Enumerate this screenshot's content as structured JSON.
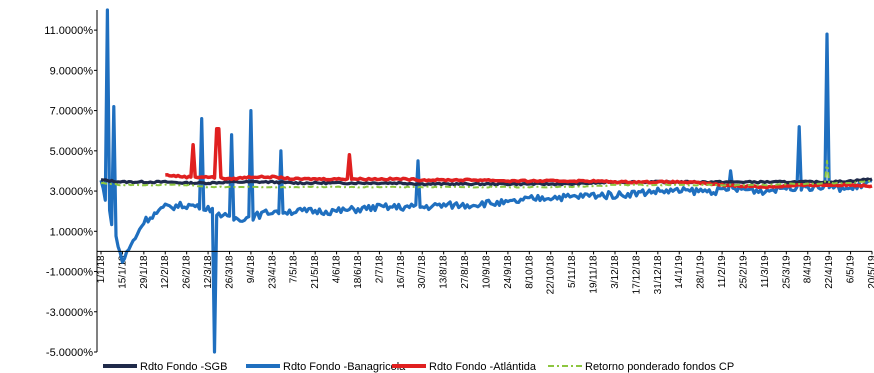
{
  "chart_data": {
    "type": "line",
    "title": "",
    "xlabel": "",
    "ylabel": "",
    "ylim": [
      -5.0,
      12.0
    ],
    "y_ticks": [
      "11.0000%",
      "9.0000%",
      "7.0000%",
      "5.0000%",
      "3.0000%",
      "1.0000%",
      "-1.0000%",
      "-3.0000%",
      "-5.0000%"
    ],
    "x_tick_labels": [
      "1/1/18",
      "15/1/18",
      "29/1/18",
      "12/2/18",
      "26/2/18",
      "12/3/18",
      "26/3/18",
      "9/4/18",
      "23/4/18",
      "7/5/18",
      "21/5/18",
      "4/6/18",
      "18/6/18",
      "2/7/18",
      "16/7/18",
      "30/7/18",
      "13/8/18",
      "27/8/18",
      "10/9/18",
      "24/9/18",
      "8/10/18",
      "22/10/18",
      "5/11/18",
      "19/11/18",
      "3/12/18",
      "17/12/18",
      "31/12/18",
      "14/1/19",
      "28/1/19",
      "11/2/19",
      "25/2/19",
      "11/3/19",
      "25/3/19",
      "8/4/19",
      "22/4/19",
      "6/5/19",
      "20/5/19"
    ],
    "grid": false,
    "legend_position": "bottom",
    "series": [
      {
        "name": "Rdto Fondo -SGB",
        "color": "#1f2a4a",
        "values": [
          3.55,
          3.45,
          3.45,
          3.45,
          3.4,
          3.4,
          3.45,
          3.45,
          3.45,
          3.4,
          3.4,
          3.4,
          3.4,
          3.4,
          3.4,
          3.35,
          3.35,
          3.35,
          3.35,
          3.35,
          3.35,
          3.35,
          3.35,
          3.4,
          3.45,
          3.45,
          3.45,
          3.45,
          3.45,
          3.45,
          3.45,
          3.45,
          3.45,
          3.45,
          3.45,
          3.5,
          3.6
        ]
      },
      {
        "name": "Rdto Fondo -Banagricola",
        "color": "#1f6fbf",
        "values": [
          3.5,
          -0.5,
          1.5,
          2.2,
          2.3,
          2.2,
          1.6,
          1.7,
          2.0,
          2.0,
          2.0,
          2.0,
          2.1,
          2.2,
          2.2,
          2.2,
          2.3,
          2.3,
          2.4,
          2.4,
          2.6,
          2.7,
          2.7,
          2.8,
          2.8,
          2.9,
          3.0,
          3.0,
          3.0,
          3.0,
          3.1,
          3.0,
          3.2,
          3.2,
          3.2,
          3.1,
          3.5
        ]
      },
      {
        "name": "Rdto Fondo -Atlántida",
        "color": "#e02020",
        "values": [
          null,
          null,
          null,
          3.8,
          3.7,
          3.7,
          3.6,
          3.7,
          3.7,
          3.6,
          3.6,
          3.6,
          3.6,
          3.6,
          3.6,
          3.55,
          3.55,
          3.55,
          3.55,
          3.5,
          3.5,
          3.5,
          3.5,
          3.5,
          3.45,
          3.45,
          3.45,
          3.45,
          3.4,
          3.3,
          3.25,
          3.2,
          3.25,
          3.3,
          3.3,
          3.3,
          3.25
        ]
      },
      {
        "name": "Retorno ponderado fondos CP",
        "color": "#8dc63f",
        "values": [
          3.4,
          3.3,
          3.3,
          3.3,
          3.3,
          3.2,
          3.2,
          3.2,
          3.2,
          3.2,
          3.2,
          3.2,
          3.2,
          3.2,
          3.2,
          3.2,
          3.2,
          3.2,
          3.2,
          3.2,
          3.2,
          3.2,
          3.2,
          3.25,
          3.3,
          3.3,
          3.3,
          3.3,
          3.3,
          3.3,
          3.3,
          3.3,
          3.35,
          3.35,
          3.4,
          3.4,
          3.5
        ]
      }
    ],
    "spikes": [
      {
        "series": "Rdto Fondo -Banagricola",
        "x_index": 0.3,
        "value": 12.0
      },
      {
        "series": "Rdto Fondo -Banagricola",
        "x_index": 0.55,
        "value": 7.2
      },
      {
        "series": "Rdto Fondo -Banagricola",
        "x_index": 4.65,
        "value": 6.6
      },
      {
        "series": "Rdto Fondo -Banagricola",
        "x_index": 5.3,
        "value": -5.0
      },
      {
        "series": "Rdto Fondo -Banagricola",
        "x_index": 6.1,
        "value": 5.8
      },
      {
        "series": "Rdto Fondo -Banagricola",
        "x_index": 7.0,
        "value": 7.0
      },
      {
        "series": "Rdto Fondo -Banagricola",
        "x_index": 8.4,
        "value": 5.0
      },
      {
        "series": "Rdto Fondo -Banagricola",
        "x_index": 14.85,
        "value": 4.5
      },
      {
        "series": "Rdto Fondo -Banagricola",
        "x_index": 29.4,
        "value": 4.0
      },
      {
        "series": "Rdto Fondo -Banagricola",
        "x_index": 32.6,
        "value": 6.2
      },
      {
        "series": "Rdto Fondo -Banagricola",
        "x_index": 33.85,
        "value": 10.8
      },
      {
        "series": "Rdto Fondo -Atlántida",
        "x_index": 4.3,
        "value": 5.3
      },
      {
        "series": "Rdto Fondo -Atlántida",
        "x_index": 5.45,
        "value": 6.1
      },
      {
        "series": "Rdto Fondo -Atlántida",
        "x_index": 11.6,
        "value": 4.8
      },
      {
        "series": "Retorno ponderado fondos CP",
        "x_index": 33.85,
        "value": 4.5
      }
    ]
  }
}
